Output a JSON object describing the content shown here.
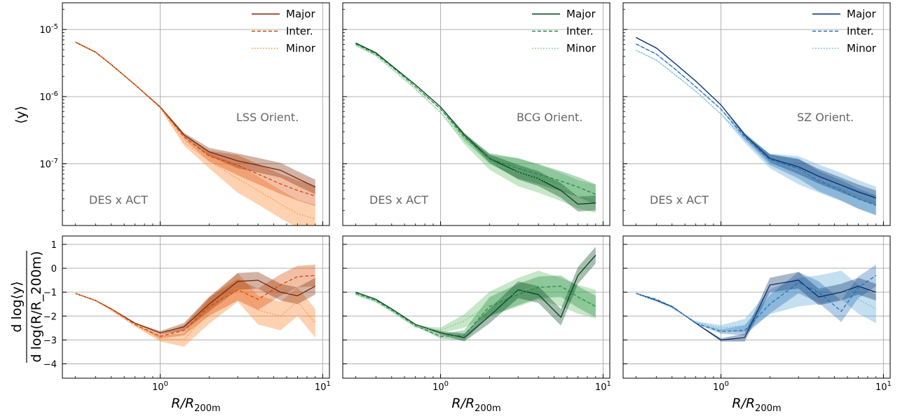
{
  "chart_data": {
    "type": "line",
    "xscale": "log",
    "xlim": [
      0.25,
      11
    ],
    "x_tick_labels": [
      "10^0",
      "10^1"
    ],
    "x_tick_values": [
      1,
      10
    ],
    "xlabel": "R/R_200m",
    "top_ylabel": "⟨y⟩",
    "top_yscale": "log",
    "top_ylim": [
      1.2e-08,
      2.5e-05
    ],
    "top_y_tick_labels": [
      "10^-5",
      "10^-6",
      "10^-7"
    ],
    "top_y_tick_values": [
      1e-05,
      1e-06,
      1e-07
    ],
    "bottom_ylabel": "d log⟨y⟩ / d log(R/R_200m)",
    "bottom_ylim": [
      -4.6,
      1.35
    ],
    "bottom_y_ticks": [
      1,
      0,
      -1,
      -2,
      -3,
      -4
    ],
    "grid": true,
    "legend_position": "top-right",
    "legend_entries": [
      "Major",
      "Inter.",
      "Minor"
    ],
    "x": [
      0.3,
      0.4,
      0.5,
      0.7,
      1.0,
      1.4,
      2.0,
      3.0,
      4.0,
      5.5,
      7.0,
      9.0
    ],
    "panels": [
      {
        "orientation_label": "LSS Orient.",
        "survey_label": "DES x ACT",
        "colors": {
          "Major": "#7f2704",
          "Inter.": "#d94801",
          "Minor": "#fd8d3c"
        },
        "profile": [
          {
            "name": "Major",
            "values": [
              6.5e-06,
              4.6e-06,
              3e-06,
              1.5e-06,
              7e-07,
              2.7e-07,
              1.5e-07,
              1.1e-07,
              9.5e-08,
              8e-08,
              6e-08,
              4.5e-08
            ]
          },
          {
            "name": "Inter.",
            "values": [
              6.5e-06,
              4.6e-06,
              3e-06,
              1.5e-06,
              7e-07,
              2.5e-07,
              1.3e-07,
              9.5e-08,
              7e-08,
              5e-08,
              4e-08,
              3.3e-08
            ]
          },
          {
            "name": "Minor",
            "values": [
              6.5e-06,
              4.6e-06,
              3e-06,
              1.5e-06,
              6.8e-07,
              2.1e-07,
              1.1e-07,
              6e-08,
              4e-08,
              2.5e-08,
              1.8e-08,
              1.5e-08
            ]
          }
        ],
        "slope": [
          {
            "name": "Major",
            "values": [
              -1.05,
              -1.35,
              -1.7,
              -2.3,
              -2.7,
              -2.45,
              -1.5,
              -0.55,
              -0.5,
              -1.0,
              -1.15,
              -0.75
            ]
          },
          {
            "name": "Inter.",
            "values": [
              -1.05,
              -1.35,
              -1.7,
              -2.35,
              -2.85,
              -2.6,
              -1.6,
              -0.9,
              -1.3,
              -0.7,
              -0.35,
              -0.3
            ]
          },
          {
            "name": "Minor",
            "values": [
              -1.05,
              -1.35,
              -1.75,
              -2.4,
              -2.95,
              -3.0,
              -1.8,
              -0.8,
              -1.75,
              -2.0,
              -1.4,
              -2.3
            ]
          }
        ]
      },
      {
        "orientation_label": "BCG Orient.",
        "survey_label": "DES x ACT",
        "colors": {
          "Major": "#00441b",
          "Inter.": "#238b45",
          "Minor": "#74c476"
        },
        "profile": [
          {
            "name": "Major",
            "values": [
              6.3e-06,
              4.5e-06,
              2.9e-06,
              1.5e-06,
              7e-07,
              2.7e-07,
              1.2e-07,
              7.5e-08,
              6e-08,
              4e-08,
              2.5e-08,
              2.6e-08
            ]
          },
          {
            "name": "Inter.",
            "values": [
              6.1e-06,
              4.3e-06,
              2.8e-06,
              1.4e-06,
              6.5e-07,
              2.5e-07,
              1.2e-07,
              8.5e-08,
              7e-08,
              5.5e-08,
              4.5e-08,
              3.5e-08
            ]
          },
          {
            "name": "Minor",
            "values": [
              5.8e-06,
              4.1e-06,
              2.6e-06,
              1.3e-06,
              5.8e-07,
              2.2e-07,
              1.05e-07,
              7.5e-08,
              6e-08,
              4.5e-08,
              3.5e-08,
              3e-08
            ]
          }
        ],
        "slope": [
          {
            "name": "Major",
            "values": [
              -1.0,
              -1.3,
              -1.7,
              -2.35,
              -2.7,
              -2.9,
              -2.0,
              -0.9,
              -1.1,
              -2.05,
              -0.3,
              0.55
            ]
          },
          {
            "name": "Inter.",
            "values": [
              -1.05,
              -1.35,
              -1.75,
              -2.4,
              -2.85,
              -2.8,
              -1.6,
              -1.1,
              -0.8,
              -0.75,
              -1.2,
              -1.6
            ]
          },
          {
            "name": "Minor",
            "values": [
              -1.1,
              -1.4,
              -1.8,
              -2.45,
              -2.6,
              -2.2,
              -1.5,
              -1.0,
              -0.7,
              -1.0,
              -1.3,
              -1.5
            ]
          }
        ]
      },
      {
        "orientation_label": "SZ Orient.",
        "survey_label": "DES x ACT",
        "colors": {
          "Major": "#08306b",
          "Inter.": "#2171b5",
          "Minor": "#6baed6"
        },
        "profile": [
          {
            "name": "Major",
            "values": [
              7.6e-06,
              5.3e-06,
              3.4e-06,
              1.7e-06,
              7.5e-07,
              2.7e-07,
              1.2e-07,
              9e-08,
              6.5e-08,
              4.8e-08,
              3.8e-08,
              3.1e-08
            ]
          },
          {
            "name": "Inter.",
            "values": [
              6.1e-06,
              4.3e-06,
              2.8e-06,
              1.4e-06,
              6.5e-07,
              2.5e-07,
              1.15e-07,
              8.5e-08,
              5.5e-08,
              4e-08,
              3e-08,
              2.4e-08
            ]
          },
          {
            "name": "Minor",
            "values": [
              4.9e-06,
              3.5e-06,
              2.3e-06,
              1.2e-06,
              5.5e-07,
              2.3e-07,
              1.1e-07,
              8e-08,
              6e-08,
              4.5e-08,
              3.5e-08,
              2.8e-08
            ]
          }
        ],
        "slope": [
          {
            "name": "Major",
            "values": [
              -1.05,
              -1.35,
              -1.6,
              -2.3,
              -3.0,
              -2.9,
              -0.7,
              -0.5,
              -1.2,
              -1.0,
              -0.75,
              -1.0
            ]
          },
          {
            "name": "Inter.",
            "values": [
              -1.05,
              -1.3,
              -1.6,
              -2.3,
              -2.65,
              -2.6,
              -1.5,
              -0.6,
              -1.0,
              -1.8,
              -0.8,
              -0.3
            ]
          },
          {
            "name": "Minor",
            "values": [
              -1.05,
              -1.35,
              -1.65,
              -2.25,
              -2.5,
              -2.4,
              -1.4,
              -1.0,
              -0.9,
              -0.7,
              -1.3,
              -1.7
            ]
          }
        ]
      }
    ]
  }
}
